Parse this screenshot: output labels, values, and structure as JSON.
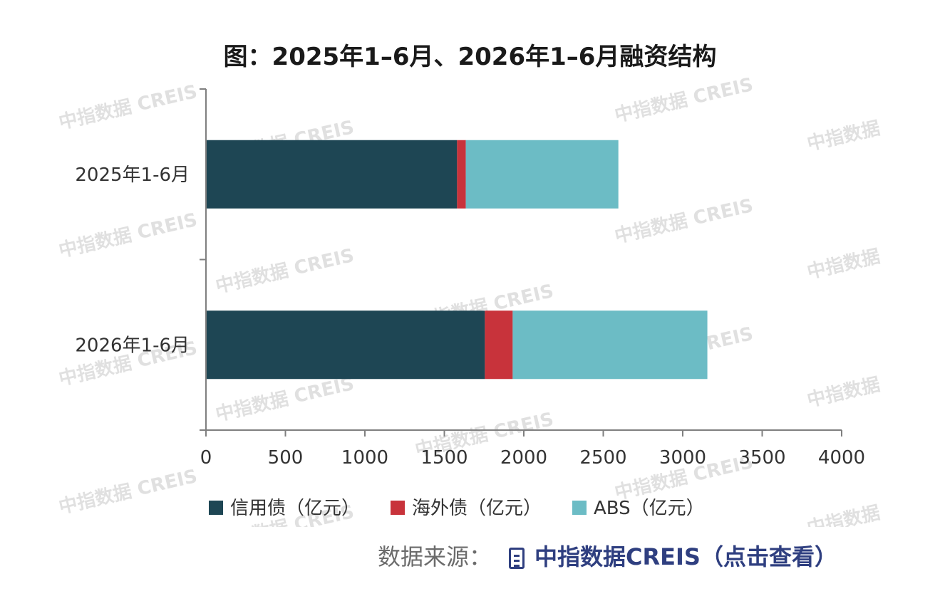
{
  "watermark_text": "中指数据 CREIS",
  "source": {
    "label": "数据来源：",
    "link_text": "中指数据CREIS（点击查看）"
  },
  "chart_data": {
    "type": "bar",
    "orientation": "horizontal",
    "stacked": true,
    "title": "图：2025年1–6月、2026年1–6月融资结构",
    "categories": [
      "2025年1-6月",
      "2026年1-6月"
    ],
    "series": [
      {
        "name": "信用债（亿元）",
        "color": "#1e4654",
        "values": [
          1580,
          1755
        ]
      },
      {
        "name": "海外债（亿元）",
        "color": "#c8333b",
        "values": [
          55,
          175
        ]
      },
      {
        "name": "ABS（亿元）",
        "color": "#6cbcc5",
        "values": [
          960,
          1225
        ]
      }
    ],
    "xlim": [
      0,
      4000
    ],
    "xticks": [
      0,
      500,
      1000,
      1500,
      2000,
      2500,
      3000,
      3500,
      4000
    ],
    "grid": false,
    "legend": "bottom"
  }
}
